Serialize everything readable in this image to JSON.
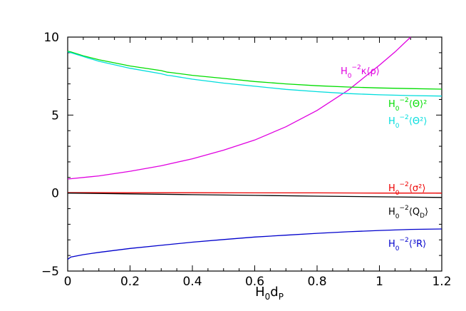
{
  "chart_data": {
    "type": "line",
    "title": "",
    "xlabel": "H0dP",
    "xlabel_main": "H",
    "xlabel_sub1": "0",
    "xlabel_mid": "d",
    "xlabel_sub2": "P",
    "ylabel": "",
    "xlim": [
      0,
      1.2
    ],
    "ylim": [
      -5,
      10
    ],
    "xticks": [
      0,
      0.2,
      0.4,
      0.6,
      0.8,
      1,
      1.2
    ],
    "xtick_labels": [
      "0",
      "0.2",
      "0.4",
      "0.6",
      "0.8",
      "1",
      "1.2"
    ],
    "yticks": [
      -5,
      0,
      5,
      10
    ],
    "ytick_labels": [
      "−5",
      "0",
      "5",
      "10"
    ],
    "grid": false,
    "legend": "inline labels at right",
    "series": [
      {
        "name": "H0^-2 κ⟨ρ⟩",
        "label_main": "H",
        "label_sub": "0",
        "label_sup": "−2",
        "label_rest": "κ⟨ρ⟩",
        "color": "#e000e0",
        "x": [
          0,
          0.1,
          0.2,
          0.3,
          0.4,
          0.5,
          0.6,
          0.7,
          0.8,
          0.9,
          1.0,
          1.05,
          1.1
        ],
        "y": [
          0.9,
          1.1,
          1.4,
          1.75,
          2.2,
          2.75,
          3.4,
          4.25,
          5.3,
          6.6,
          8.2,
          9.05,
          10.0
        ]
      },
      {
        "name": "H0^-2⟨Θ⟩²",
        "label_main": "H",
        "label_sub": "0",
        "label_sup": "−2",
        "label_rest": "⟨Θ⟩²",
        "color": "#00dd00",
        "x": [
          0,
          0.01,
          0.05,
          0.1,
          0.2,
          0.3,
          0.32,
          0.33,
          0.4,
          0.5,
          0.6,
          0.7,
          0.8,
          0.9,
          1.0,
          1.1,
          1.2
        ],
        "y": [
          9.1,
          9.05,
          8.8,
          8.55,
          8.15,
          7.85,
          7.75,
          7.73,
          7.55,
          7.35,
          7.15,
          7.0,
          6.88,
          6.8,
          6.74,
          6.7,
          6.66
        ]
      },
      {
        "name": "H0^-2⟨Θ²⟩",
        "label_main": "H",
        "label_sub": "0",
        "label_sup": "−2",
        "label_rest": "⟨Θ²⟩",
        "color": "#00dddd",
        "x": [
          0,
          0.01,
          0.05,
          0.1,
          0.2,
          0.3,
          0.32,
          0.33,
          0.4,
          0.5,
          0.6,
          0.7,
          0.8,
          0.9,
          1.0,
          1.1,
          1.2
        ],
        "y": [
          9.05,
          9.0,
          8.75,
          8.45,
          8.0,
          7.65,
          7.55,
          7.53,
          7.3,
          7.05,
          6.85,
          6.65,
          6.5,
          6.38,
          6.3,
          6.25,
          6.22
        ]
      },
      {
        "name": "H0^-2⟨σ²⟩",
        "label_main": "H",
        "label_sub": "0",
        "label_sup": "−2",
        "label_rest": "⟨σ²⟩",
        "color": "#ee0000",
        "x": [
          0,
          0.2,
          0.4,
          0.6,
          0.8,
          1.0,
          1.2
        ],
        "y": [
          0.03,
          0.02,
          0.02,
          0.01,
          0.01,
          0.0,
          0.0
        ]
      },
      {
        "name": "H0^-2⟨QD⟩",
        "label_main": "H",
        "label_sub": "0",
        "label_sup": "−2",
        "label_rest": "⟨Q",
        "label_rest_sub": "D",
        "label_rest_end": "⟩",
        "color": "#000000",
        "x": [
          0,
          0.2,
          0.4,
          0.6,
          0.8,
          1.0,
          1.2
        ],
        "y": [
          0.0,
          -0.05,
          -0.1,
          -0.15,
          -0.2,
          -0.24,
          -0.28
        ]
      },
      {
        "name": "H0^-2⟨³R⟩",
        "label_main": "H",
        "label_sub": "0",
        "label_sup": "−2",
        "label_rest": "⟨³R⟩",
        "color": "#0000cc",
        "x": [
          0,
          0.01,
          0.05,
          0.1,
          0.2,
          0.3,
          0.4,
          0.5,
          0.6,
          0.7,
          0.8,
          0.9,
          1.0,
          1.1,
          1.2
        ],
        "y": [
          -4.25,
          -4.1,
          -3.95,
          -3.8,
          -3.55,
          -3.35,
          -3.15,
          -2.98,
          -2.82,
          -2.7,
          -2.58,
          -2.48,
          -2.4,
          -2.33,
          -2.3
        ]
      }
    ]
  }
}
